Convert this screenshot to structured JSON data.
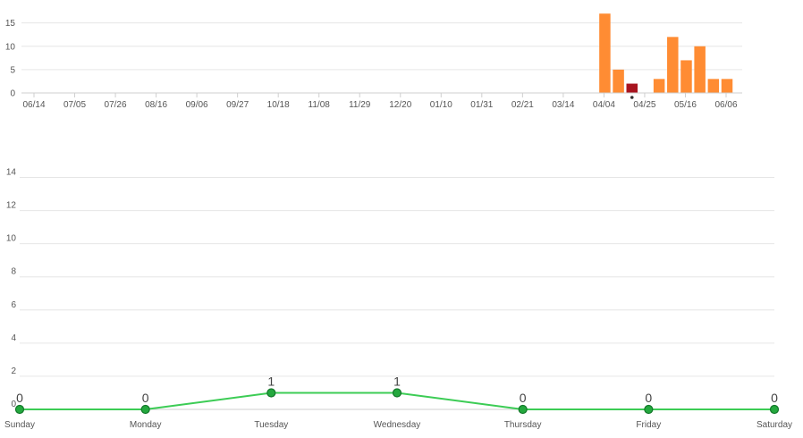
{
  "chart_data": [
    {
      "type": "bar",
      "title": "",
      "xlabel": "",
      "ylabel": "",
      "ylim": [
        0,
        18
      ],
      "yticks": [
        0,
        5,
        10,
        15
      ],
      "grid": true,
      "x_tick_labels": [
        "06/14",
        "07/05",
        "07/26",
        "08/16",
        "09/06",
        "09/27",
        "10/18",
        "11/08",
        "11/29",
        "12/20",
        "01/10",
        "01/31",
        "02/21",
        "03/14",
        "04/04",
        "04/25",
        "05/16",
        "06/06"
      ],
      "bars": [
        {
          "date": "04/04",
          "value": 17,
          "highlight": false
        },
        {
          "date": "04/11",
          "value": 5,
          "highlight": false
        },
        {
          "date": "04/18",
          "value": 2,
          "highlight": true
        },
        {
          "date": "04/25",
          "value": 0,
          "highlight": false
        },
        {
          "date": "05/02",
          "value": 3,
          "highlight": false
        },
        {
          "date": "05/09",
          "value": 12,
          "highlight": false
        },
        {
          "date": "05/16",
          "value": 7,
          "highlight": false
        },
        {
          "date": "05/23",
          "value": 10,
          "highlight": false
        },
        {
          "date": "05/30",
          "value": 3,
          "highlight": false
        },
        {
          "date": "06/06",
          "value": 3,
          "highlight": false
        }
      ],
      "marker_date": "04/18",
      "colors": {
        "bar": "#ff8c33",
        "highlight": "#a8141f",
        "marker": "#333333"
      }
    },
    {
      "type": "line",
      "title": "",
      "xlabel": "",
      "ylabel": "",
      "ylim": [
        0,
        15
      ],
      "yticks": [
        0,
        2,
        4,
        6,
        8,
        10,
        12,
        14
      ],
      "grid": true,
      "categories": [
        "Sunday",
        "Monday",
        "Tuesday",
        "Wednesday",
        "Thursday",
        "Friday",
        "Saturday"
      ],
      "series": [
        {
          "values": [
            0,
            0,
            1,
            1,
            0,
            0,
            0
          ]
        }
      ],
      "data_labels": [
        "0",
        "0",
        "1",
        "1",
        "0",
        "0",
        "0"
      ],
      "colors": {
        "line": "#3ccc55",
        "point_fill": "#24a83e",
        "point_stroke": "#13782a"
      }
    }
  ]
}
